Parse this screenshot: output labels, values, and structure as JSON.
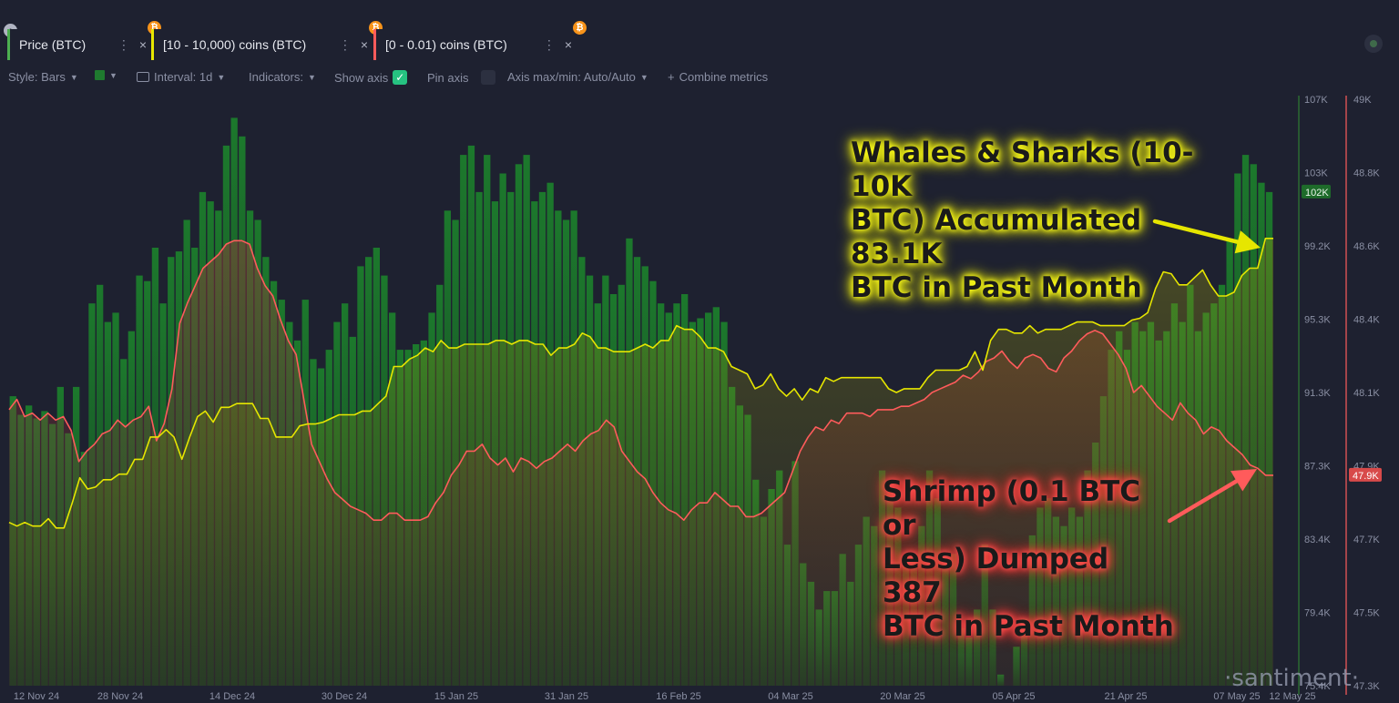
{
  "metrics": [
    {
      "label": "Price (BTC)",
      "menu": "⋮",
      "close": "×",
      "badge": "₿"
    },
    {
      "label": "[10 - 10,000) coins (BTC)",
      "menu": "⋮",
      "close": "×",
      "badge": "₿"
    },
    {
      "label": "[0 - 0.01) coins (BTC)",
      "menu": "⋮",
      "close": "×",
      "badge": "₿"
    }
  ],
  "toolbar": {
    "style": "Style: Bars",
    "interval": "Interval: 1d",
    "indicators": "Indicators:",
    "show_axis": "Show axis",
    "show_axis_checked": true,
    "pin_axis": "Pin axis",
    "axis_maxmin": "Axis max/min: Auto/Auto",
    "combine": "Combine metrics"
  },
  "callouts": {
    "whale_lines": [
      "Whales & Sharks (10-10K",
      "BTC) Accumulated 83.1K",
      "BTC in Past Month"
    ],
    "shrimp_lines": [
      "Shrimp (0.1 BTC or",
      "Less) Dumped 387",
      "BTC in Past Month"
    ]
  },
  "watermark": "·santiment·",
  "colors": {
    "background": "#1e2130",
    "price_bar_top": "#1f7a2f",
    "whale_line": "#e6e600",
    "shrimp_line": "#ff5b5b",
    "price_axis": "#2e7d32"
  },
  "chart_data": {
    "type": "bar",
    "x_ticks": [
      "12 Nov 24",
      "28 Nov 24",
      "14 Dec 24",
      "30 Dec 24",
      "15 Jan 25",
      "31 Jan 25",
      "16 Feb 25",
      "04 Mar 25",
      "20 Mar 25",
      "05 Apr 25",
      "21 Apr 25",
      "07 May 25",
      "12 May 25"
    ],
    "left_axis_ticks": [
      "107K",
      "103K",
      "99.2K",
      "95.3K",
      "91.3K",
      "87.3K",
      "83.4K",
      "79.4K",
      "75.4K"
    ],
    "right_axis_ticks": [
      "49K",
      "48.8K",
      "48.6K",
      "48.4K",
      "48.1K",
      "47.9K",
      "47.7K",
      "47.5K",
      "47.3K"
    ],
    "left_axis_range": [
      75400,
      107000
    ],
    "right_axis_range": [
      47300,
      49000
    ],
    "current_price_label": "102K",
    "current_shrimp_label": "47.9K",
    "series": [
      {
        "name": "Price (BTC)",
        "kind": "bars",
        "axis": "left",
        "values": [
          91.0,
          90.0,
          90.5,
          89.8,
          90.2,
          89.5,
          91.5,
          89.0,
          91.5,
          88.0,
          96.0,
          97.0,
          95.0,
          95.5,
          93.0,
          94.5,
          97.5,
          97.2,
          99.0,
          96.0,
          98.5,
          98.8,
          100.5,
          99.0,
          102.0,
          101.5,
          101.0,
          104.5,
          106.0,
          105.0,
          101.0,
          100.5,
          98.5,
          97.2,
          96.2,
          95.0,
          94.0,
          96.2,
          93.0,
          92.5,
          93.5,
          95.0,
          96.0,
          94.2,
          98.0,
          98.5,
          99.0,
          97.5,
          95.5,
          93.5,
          93.5,
          93.8,
          94.0,
          95.5,
          97.0,
          101.0,
          100.5,
          104.0,
          104.5,
          102.0,
          104.0,
          101.5,
          103.0,
          102.0,
          103.5,
          104.0,
          101.5,
          102.0,
          102.5,
          101.0,
          100.5,
          101.0,
          98.5,
          97.5,
          96.0,
          97.5,
          96.5,
          97.0,
          99.5,
          98.5,
          98.0,
          97.2,
          96.0,
          95.5,
          96.0,
          96.5,
          95.0,
          95.2,
          95.5,
          95.8,
          95.0,
          91.5,
          90.5,
          90.0,
          86.5,
          84.5,
          86.0,
          87.0,
          83.0,
          87.5,
          82.0,
          81.0,
          79.5,
          80.5,
          80.5,
          82.5,
          81.0,
          83.0,
          84.5,
          84.0,
          87.0,
          86.0,
          85.0,
          82.0,
          82.5,
          84.0,
          87.0,
          85.5,
          82.0,
          82.5,
          78.5,
          78.0,
          79.5,
          83.0,
          79.5,
          76.0,
          75.0,
          77.5,
          79.0,
          83.5,
          85.0,
          85.5,
          84.5,
          84.0,
          85.0,
          84.5,
          87.0,
          88.5,
          91.0,
          93.5,
          94.5,
          93.5,
          95.0,
          94.5,
          95.0,
          94.0,
          94.5,
          96.0,
          95.0,
          97.0,
          94.5,
          95.5,
          96.0,
          97.0,
          99.5,
          103.0,
          104.0,
          103.5,
          102.5,
          102.0
        ]
      },
      {
        "name": "[10 - 10,000) coins (BTC)",
        "kind": "line",
        "axis": "left",
        "values": [
          84.2,
          84.0,
          84.2,
          84.0,
          84.0,
          84.4,
          83.9,
          83.9,
          85.2,
          86.6,
          86.0,
          86.1,
          86.5,
          86.5,
          86.8,
          86.8,
          87.6,
          87.6,
          88.8,
          88.8,
          89.2,
          88.8,
          87.6,
          88.8,
          89.9,
          90.2,
          89.6,
          90.4,
          90.4,
          90.6,
          90.6,
          90.6,
          89.8,
          89.8,
          88.8,
          88.8,
          88.8,
          89.4,
          89.5,
          89.5,
          89.6,
          89.8,
          90.0,
          90.0,
          90.0,
          90.2,
          90.2,
          90.6,
          91.0,
          92.6,
          92.6,
          93.0,
          93.2,
          93.6,
          93.4,
          94.0,
          93.6,
          93.6,
          93.8,
          93.8,
          93.8,
          93.8,
          94.0,
          94.0,
          93.8,
          94.0,
          94.0,
          93.8,
          93.8,
          93.2,
          93.6,
          93.6,
          93.8,
          94.4,
          94.2,
          93.6,
          93.6,
          93.4,
          93.4,
          93.4,
          93.6,
          93.8,
          93.6,
          94.0,
          94.0,
          94.8,
          94.6,
          94.6,
          94.2,
          93.6,
          93.6,
          93.4,
          92.6,
          92.4,
          92.2,
          91.4,
          91.6,
          92.2,
          91.4,
          91.0,
          91.4,
          90.8,
          91.4,
          91.2,
          92.0,
          91.8,
          92.0,
          92.0,
          92.0,
          92.0,
          92.0,
          92.0,
          91.4,
          91.2,
          91.4,
          91.4,
          91.4,
          92.0,
          92.4,
          92.4,
          92.4,
          92.4,
          92.6,
          93.4,
          92.4,
          94.0,
          94.6,
          94.6,
          94.4,
          94.4,
          94.8,
          94.4,
          94.6,
          94.6,
          94.6,
          94.8,
          95.0,
          95.0,
          95.0,
          94.8,
          94.8,
          94.8,
          94.8,
          95.1,
          95.2,
          95.5,
          96.8,
          97.7,
          97.6,
          97.0,
          97.0,
          97.4,
          97.8,
          97.0,
          96.4,
          96.4,
          96.6,
          97.5,
          97.9,
          97.9,
          99.5,
          99.5
        ]
      },
      {
        "name": "[0 - 0.01) coins (BTC)",
        "kind": "line",
        "axis": "right",
        "values": [
          48.1,
          48.13,
          48.08,
          48.09,
          48.07,
          48.09,
          48.07,
          48.08,
          48.04,
          47.95,
          47.98,
          48.0,
          48.03,
          48.04,
          48.07,
          48.05,
          48.07,
          48.08,
          48.11,
          48.01,
          48.06,
          48.16,
          48.35,
          48.41,
          48.46,
          48.51,
          48.53,
          48.55,
          48.58,
          48.59,
          48.59,
          48.58,
          48.51,
          48.46,
          48.43,
          48.36,
          48.3,
          48.26,
          48.13,
          48.0,
          47.95,
          47.9,
          47.86,
          47.84,
          47.82,
          47.81,
          47.8,
          47.78,
          47.78,
          47.8,
          47.8,
          47.78,
          47.78,
          47.78,
          47.79,
          47.83,
          47.86,
          47.91,
          47.94,
          47.98,
          47.98,
          48.0,
          47.96,
          47.94,
          47.96,
          47.92,
          47.96,
          47.95,
          47.93,
          47.95,
          47.96,
          47.98,
          48.0,
          47.98,
          48.01,
          48.03,
          48.04,
          48.07,
          48.05,
          47.98,
          47.95,
          47.92,
          47.9,
          47.86,
          47.83,
          47.81,
          47.8,
          47.78,
          47.81,
          47.83,
          47.83,
          47.86,
          47.84,
          47.82,
          47.82,
          47.79,
          47.79,
          47.8,
          47.82,
          47.84,
          47.86,
          47.92,
          47.98,
          48.02,
          48.05,
          48.04,
          48.07,
          48.06,
          48.09,
          48.09,
          48.09,
          48.08,
          48.1,
          48.1,
          48.1,
          48.11,
          48.11,
          48.12,
          48.13,
          48.15,
          48.16,
          48.17,
          48.18,
          48.2,
          48.19,
          48.21,
          48.24,
          48.25,
          48.27,
          48.24,
          48.22,
          48.25,
          48.26,
          48.25,
          48.22,
          48.21,
          48.25,
          48.27,
          48.3,
          48.32,
          48.33,
          48.32,
          48.29,
          48.26,
          48.22,
          48.15,
          48.17,
          48.14,
          48.11,
          48.09,
          48.07,
          48.12,
          48.09,
          48.07,
          48.03,
          48.05,
          48.04,
          48.01,
          47.99,
          47.97,
          47.94,
          47.93,
          47.91,
          47.91
        ]
      }
    ]
  }
}
